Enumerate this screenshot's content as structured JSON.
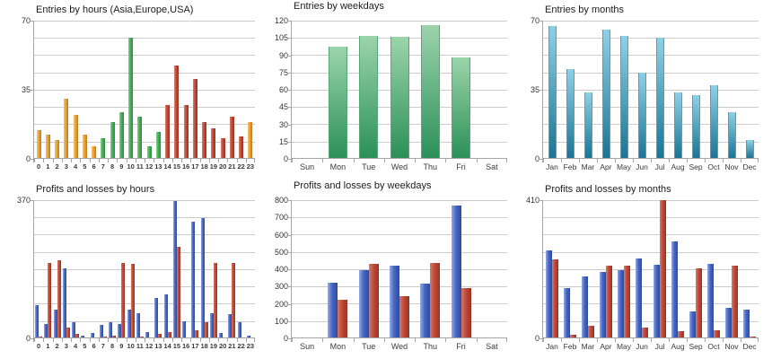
{
  "page": {
    "background": "#ffffff",
    "grid_color": "#cccccc",
    "axis_color": "#a6a6a6",
    "text_color": "#333333"
  },
  "chart_data": [
    {
      "id": "entries-by-hours",
      "type": "bar",
      "title": "Entries by hours (Asia,Europe,USA)",
      "xlabel": "",
      "ylabel": "",
      "ylim": [
        0,
        70
      ],
      "grid_divisions": 8,
      "grid": true,
      "legend": "none",
      "y_tick_labels": [
        {
          "value": 0,
          "label": "0"
        },
        {
          "value": 35,
          "label": "35"
        },
        {
          "value": 70,
          "label": "70"
        }
      ],
      "categories": [
        "0",
        "1",
        "2",
        "3",
        "4",
        "5",
        "6",
        "7",
        "8",
        "9",
        "10",
        "11",
        "12",
        "13",
        "14",
        "15",
        "16",
        "17",
        "18",
        "19",
        "20",
        "21",
        "22",
        "23"
      ],
      "bar_color_groups": [
        "asia",
        "asia",
        "asia",
        "asia",
        "asia",
        "asia",
        "asia",
        "europe",
        "europe",
        "europe",
        "europe",
        "europe",
        "europe",
        "europe",
        "usa",
        "usa",
        "usa",
        "usa",
        "usa",
        "usa",
        "usa",
        "usa",
        "usa",
        "asia"
      ],
      "palette": {
        "asia": {
          "light": "#F5C26C",
          "base": "#E8A33D",
          "dark": "#BA7A1E"
        },
        "europe": {
          "light": "#8CCD96",
          "base": "#4CAC5C",
          "dark": "#2E8A3E"
        },
        "usa": {
          "light": "#D97F6F",
          "base": "#C04B39",
          "dark": "#98301F"
        }
      },
      "series": [
        {
          "name": "Entries",
          "values": [
            14,
            12,
            9,
            30,
            22,
            12,
            6,
            10,
            18,
            23,
            61,
            21,
            6,
            13,
            27,
            47,
            27,
            40,
            18,
            15,
            10,
            21,
            11,
            18
          ]
        }
      ]
    },
    {
      "id": "entries-by-weekdays",
      "type": "bar",
      "title": "Entries by weekdays",
      "xlabel": "",
      "ylabel": "",
      "ylim": [
        0,
        120
      ],
      "grid_divisions": 8,
      "grid": true,
      "legend": "none",
      "y_tick_labels": [
        {
          "value": 0,
          "label": "0"
        },
        {
          "value": 15,
          "label": "15"
        },
        {
          "value": 30,
          "label": "30"
        },
        {
          "value": 45,
          "label": "45"
        },
        {
          "value": 60,
          "label": "60"
        },
        {
          "value": 75,
          "label": "75"
        },
        {
          "value": 90,
          "label": "90"
        },
        {
          "value": 105,
          "label": "105"
        },
        {
          "value": 120,
          "label": "120"
        }
      ],
      "categories": [
        "Sun",
        "Mon",
        "Tue",
        "Wed",
        "Thu",
        "Fri",
        "Sat"
      ],
      "series": [
        {
          "name": "Entries",
          "color": {
            "top": "#9CD4AB",
            "bottom": "#2B9058",
            "edge": "#52A877"
          },
          "values": [
            0,
            97,
            106,
            105,
            115,
            87,
            0
          ]
        }
      ]
    },
    {
      "id": "entries-by-months",
      "type": "bar",
      "title": "Entries by months",
      "xlabel": "",
      "ylabel": "",
      "ylim": [
        0,
        70
      ],
      "grid_divisions": 8,
      "grid": true,
      "legend": "none",
      "y_tick_labels": [
        {
          "value": 0,
          "label": "0"
        },
        {
          "value": 35,
          "label": "35"
        },
        {
          "value": 70,
          "label": "70"
        }
      ],
      "categories": [
        "Jan",
        "Feb",
        "Mar",
        "Apr",
        "May",
        "Jun",
        "Jul",
        "Aug",
        "Sep",
        "Oct",
        "Nov",
        "Dec"
      ],
      "series": [
        {
          "name": "Entries",
          "color": {
            "top": "#8ED1E6",
            "bottom": "#1C7493",
            "edge": "#4BA3C0"
          },
          "values": [
            67,
            45,
            33,
            65,
            62,
            43,
            61,
            33,
            32,
            37,
            23,
            9
          ]
        }
      ]
    },
    {
      "id": "pl-by-hours",
      "type": "bar",
      "title": "Profits and losses by hours",
      "xlabel": "",
      "ylabel": "",
      "ylim": [
        0,
        370
      ],
      "grid_divisions": 8,
      "grid": true,
      "legend": "none",
      "y_tick_labels": [
        {
          "value": 0,
          "label": "0"
        },
        {
          "value": 370,
          "label": "370"
        }
      ],
      "categories": [
        "0",
        "1",
        "2",
        "3",
        "4",
        "5",
        "6",
        "7",
        "8",
        "9",
        "10",
        "11",
        "12",
        "13",
        "14",
        "15",
        "16",
        "17",
        "18",
        "19",
        "20",
        "21",
        "22",
        "23"
      ],
      "series": [
        {
          "name": "Profit",
          "color": {
            "light": "#96ABE4",
            "base": "#4667C4",
            "dark": "#32499B"
          },
          "values": [
            86,
            37,
            74,
            185,
            42,
            4,
            13,
            34,
            41,
            37,
            74,
            64,
            15,
            105,
            116,
            366,
            44,
            309,
            319,
            66,
            11,
            62,
            42,
            6
          ]
        },
        {
          "name": "Loss",
          "color": {
            "light": "#D6796A",
            "base": "#C04B39",
            "dark": "#9C3121"
          },
          "values": [
            3,
            199,
            206,
            26,
            9,
            0,
            0,
            2,
            6,
            200,
            198,
            3,
            0,
            10,
            14,
            242,
            0,
            19,
            42,
            199,
            0,
            199,
            0,
            0
          ]
        }
      ]
    },
    {
      "id": "pl-by-weekdays",
      "type": "bar",
      "title": "Profits and losses by weekdays",
      "xlabel": "",
      "ylabel": "",
      "ylim": [
        0,
        800
      ],
      "grid_divisions": 8,
      "grid": true,
      "legend": "none",
      "y_tick_labels": [
        {
          "value": 0,
          "label": "0"
        },
        {
          "value": 100,
          "label": "100"
        },
        {
          "value": 200,
          "label": "200"
        },
        {
          "value": 300,
          "label": "300"
        },
        {
          "value": 400,
          "label": "400"
        },
        {
          "value": 500,
          "label": "500"
        },
        {
          "value": 600,
          "label": "600"
        },
        {
          "value": 700,
          "label": "700"
        },
        {
          "value": 800,
          "label": "800"
        }
      ],
      "categories": [
        "Sun",
        "Mon",
        "Tue",
        "Wed",
        "Thu",
        "Fri",
        "Sat"
      ],
      "series": [
        {
          "name": "Profit",
          "color": {
            "light": "#96ABE4",
            "base": "#4667C4",
            "dark": "#32499B"
          },
          "values": [
            0,
            318,
            390,
            414,
            311,
            765,
            0
          ]
        },
        {
          "name": "Loss",
          "color": {
            "light": "#D6796A",
            "base": "#C04B39",
            "dark": "#9C3121"
          },
          "values": [
            0,
            217,
            425,
            240,
            430,
            287,
            0
          ]
        }
      ]
    },
    {
      "id": "pl-by-months",
      "type": "bar",
      "title": "Profits and losses by months",
      "xlabel": "",
      "ylabel": "",
      "ylim": [
        0,
        410
      ],
      "grid_divisions": 8,
      "grid": true,
      "legend": "none",
      "y_tick_labels": [
        {
          "value": 0,
          "label": "0"
        },
        {
          "value": 410,
          "label": "410"
        }
      ],
      "categories": [
        "Jan",
        "Feb",
        "Mar",
        "Apr",
        "May",
        "Jun",
        "Jul",
        "Aug",
        "Sep",
        "Oct",
        "Nov",
        "Dec"
      ],
      "series": [
        {
          "name": "Profit",
          "color": {
            "light": "#96ABE4",
            "base": "#4667C4",
            "dark": "#32499B"
          },
          "values": [
            259,
            147,
            180,
            194,
            201,
            233,
            215,
            284,
            76,
            217,
            87,
            82
          ]
        },
        {
          "name": "Loss",
          "color": {
            "light": "#D6796A",
            "base": "#C04B39",
            "dark": "#9C3121"
          },
          "values": [
            231,
            9,
            34,
            214,
            212,
            28,
            408,
            18,
            204,
            22,
            214,
            2
          ]
        }
      ]
    }
  ]
}
